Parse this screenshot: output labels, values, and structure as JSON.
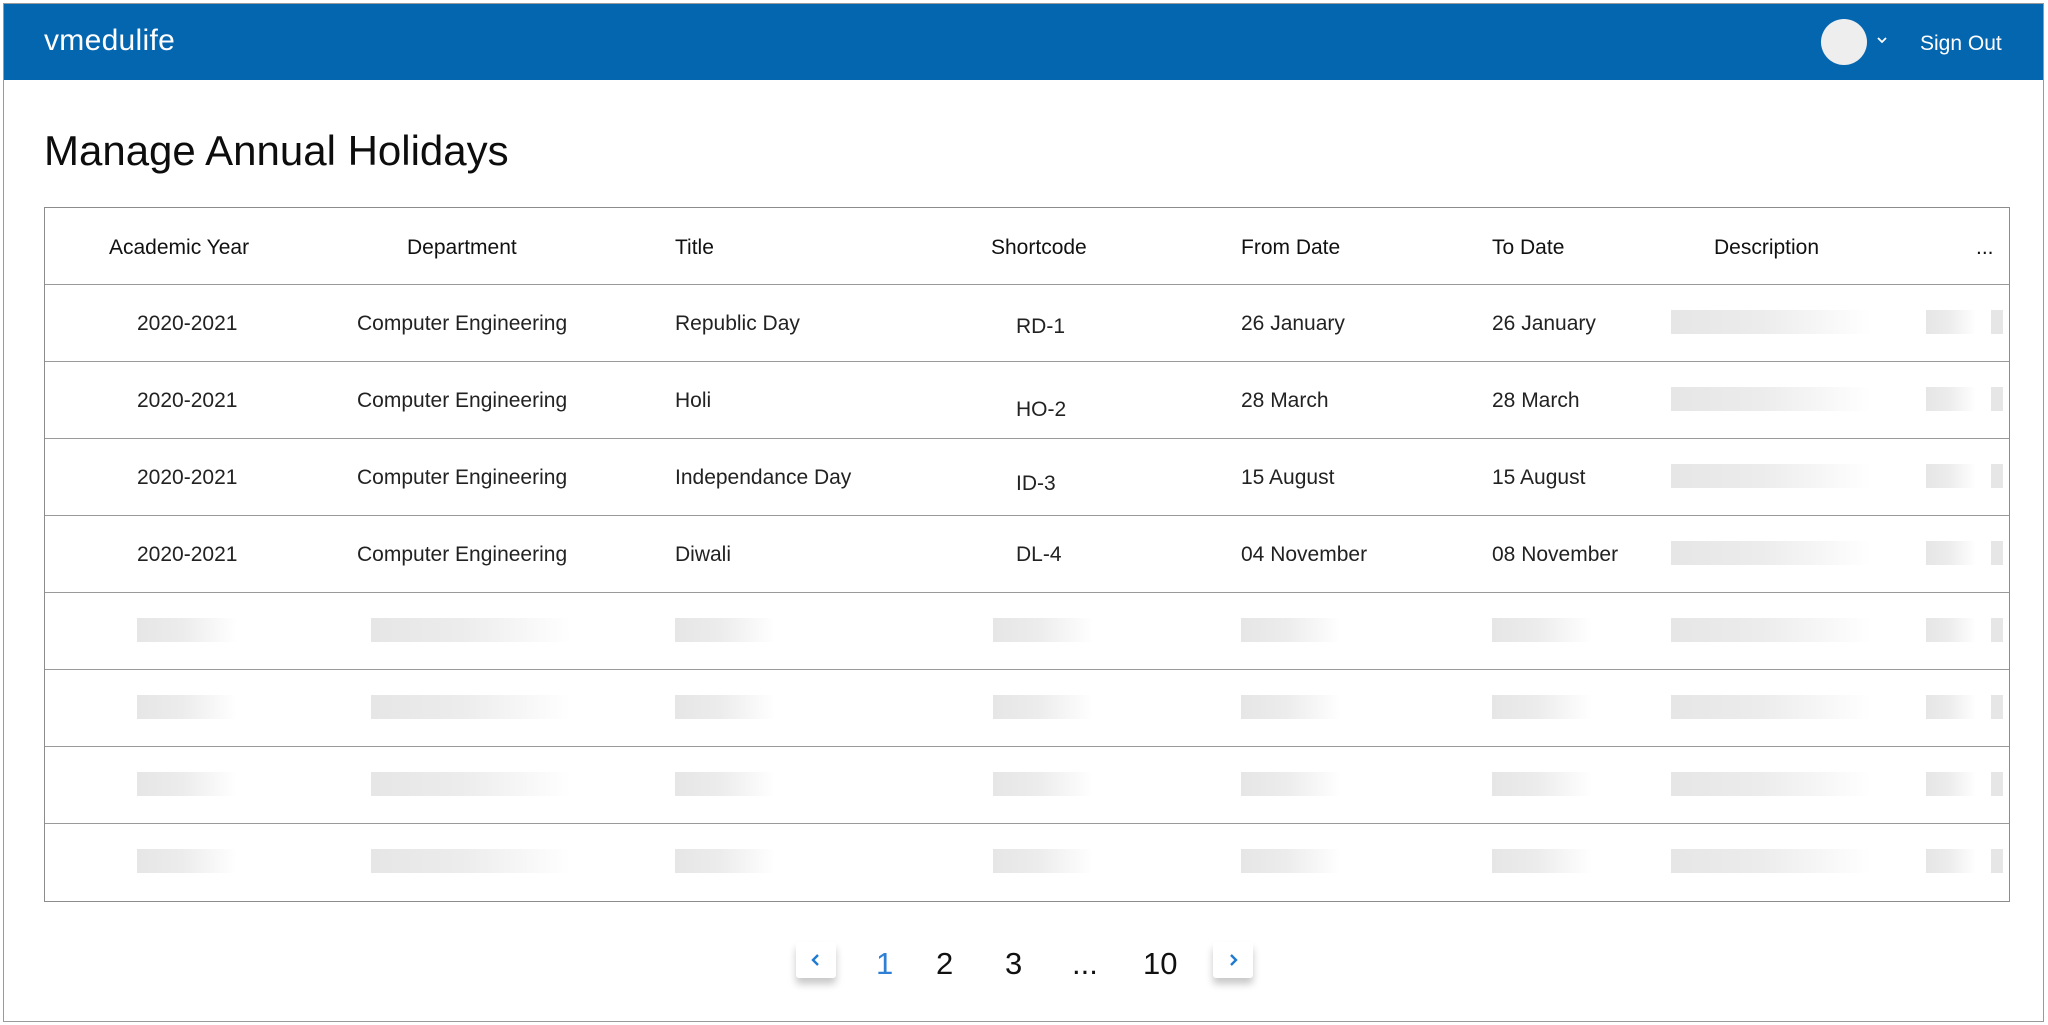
{
  "header": {
    "brand": "vmedulife",
    "sign_out_label": "Sign Out",
    "avatar_icon": "avatar-circle",
    "caret_icon": "chevron-down-icon"
  },
  "page": {
    "title": "Manage Annual Holidays"
  },
  "table": {
    "columns": [
      "Academic Year",
      "Department",
      "Title",
      "Shortcode",
      "From Date",
      "To Date",
      "Description",
      "..."
    ],
    "rows": [
      {
        "academic_year": "2020-2021",
        "department": "Computer Engineering",
        "title": "Republic Day",
        "shortcode": "RD-1",
        "from_date": "26 January",
        "to_date": "26 January"
      },
      {
        "academic_year": "2020-2021",
        "department": "Computer Engineering",
        "title": "Holi",
        "shortcode": "HO-2",
        "from_date": "28 March",
        "to_date": "28 March"
      },
      {
        "academic_year": "2020-2021",
        "department": "Computer Engineering",
        "title": "Independance Day",
        "shortcode": "ID-3",
        "from_date": "15 August",
        "to_date": "15 August"
      },
      {
        "academic_year": "2020-2021",
        "department": "Computer Engineering",
        "title": "Diwali",
        "shortcode": "DL-4",
        "from_date": "04 November",
        "to_date": "08 November"
      }
    ]
  },
  "pagination": {
    "prev_icon": "chevron-left-icon",
    "next_icon": "chevron-right-icon",
    "pages": [
      "1",
      "2",
      "3",
      "...",
      "10"
    ],
    "active_page": "1"
  },
  "colors": {
    "header_bg": "#0566b0",
    "accent": "#2f80d4",
    "skeleton": "#e6e6e6"
  }
}
